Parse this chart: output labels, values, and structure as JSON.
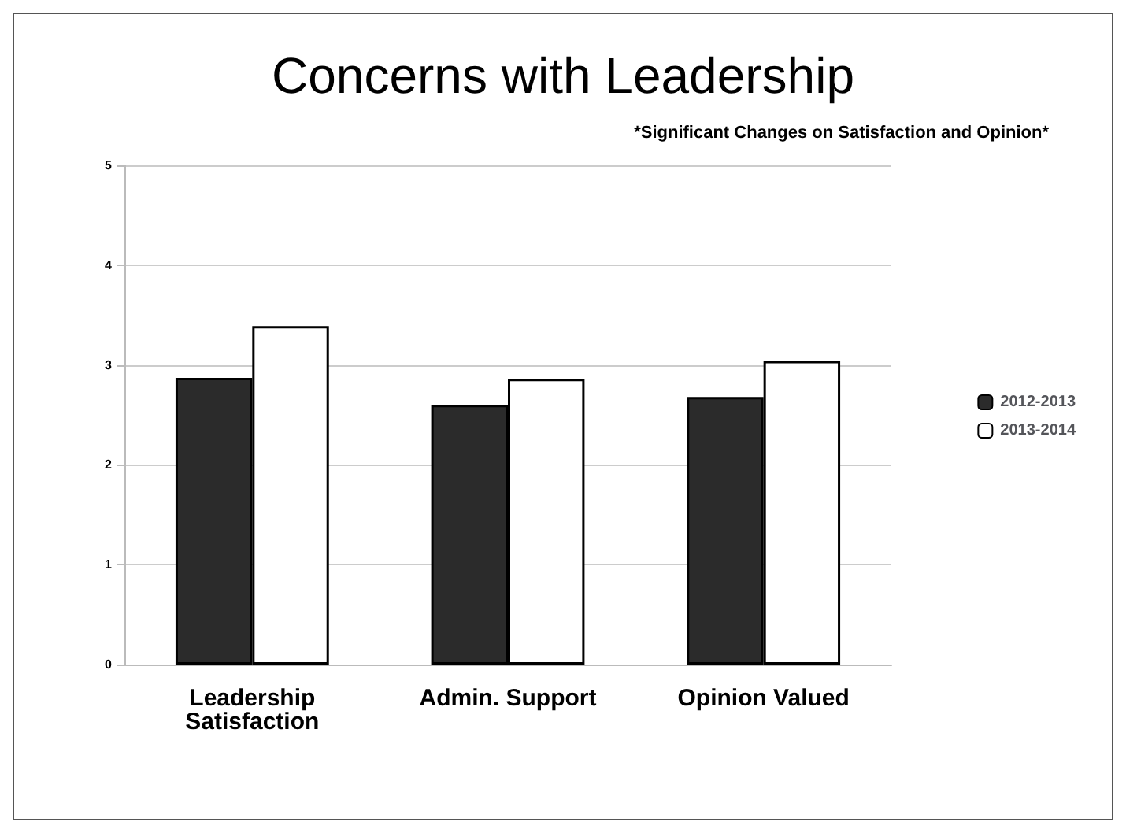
{
  "chart_data": {
    "type": "bar",
    "title": "Concerns with Leadership",
    "annotations": [
      "*Significant Changes on Satisfaction and Opinion*"
    ],
    "categories": [
      "Leadership\nSatisfaction",
      "Admin. Support",
      "Opinion Valued"
    ],
    "series": [
      {
        "name": "2012-2013",
        "color": "#2b2b2b",
        "values": [
          2.87,
          2.6,
          2.68
        ]
      },
      {
        "name": "2013-2014",
        "color": "#ffffff",
        "values": [
          3.39,
          2.86,
          3.04
        ]
      }
    ],
    "ylim": [
      0,
      5
    ],
    "yticks": [
      0,
      1,
      2,
      3,
      4,
      5
    ],
    "grid": "y",
    "legend": "right"
  }
}
